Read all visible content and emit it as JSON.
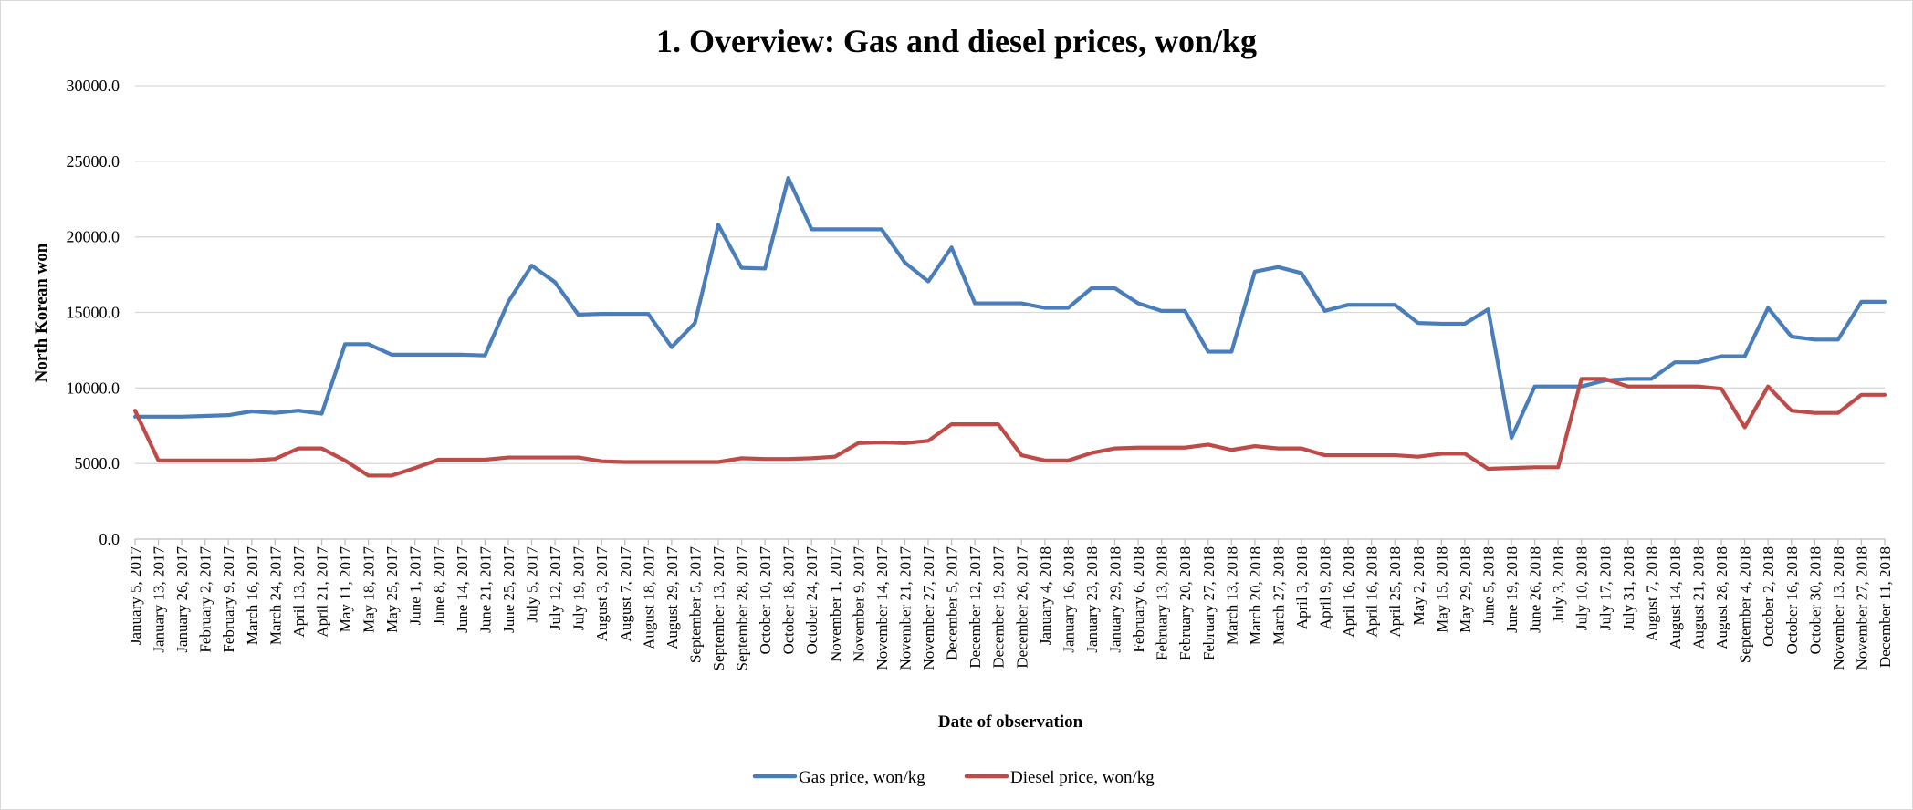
{
  "chart_data": {
    "type": "line",
    "title": "1. Overview: Gas and diesel prices, won/kg",
    "xlabel": "Date of observation",
    "ylabel": "North Korean won",
    "ylim": [
      0,
      30000
    ],
    "yticks": [
      "0.0",
      "5000.0",
      "10000.0",
      "15000.0",
      "20000.0",
      "25000.0",
      "30000.0"
    ],
    "grid": true,
    "legend_position": "bottom",
    "categories": [
      "January 5, 2017",
      "January 13, 2017",
      "January 26, 2017",
      "February 2, 2017",
      "February 9, 2017",
      "March 16, 2017",
      "March 24, 2017",
      "April 13, 2017",
      "April 21, 2017",
      "May 11, 2017",
      "May 18, 2017",
      "May 25, 2017",
      "June 1, 2017",
      "June 8, 2017",
      "June 14, 2017",
      "June 21, 2017",
      "June 25, 2017",
      "July 5, 2017",
      "July 12, 2017",
      "July 19, 2017",
      "August 3, 2017",
      "August 7, 2017",
      "August 18, 2017",
      "August 29, 2017",
      "September 5, 2017",
      "September 13, 2017",
      "September 28, 2017",
      "October 10, 2017",
      "October 18, 2017",
      "October 24, 2017",
      "November 1, 2017",
      "November 9, 2017",
      "November 14, 2017",
      "November 21, 2017",
      "November 27, 2017",
      "December 5, 2017",
      "December 12, 2017",
      "December 19, 2017",
      "December 26, 2017",
      "January 4, 2018",
      "January 16, 2018",
      "January 23, 2018",
      "January 29, 2018",
      "February 6, 2018",
      "February 13, 2018",
      "February 20, 2018",
      "February 27, 2018",
      "March 13, 2018",
      "March 20, 2018",
      "March 27, 2018",
      "April 3, 2018",
      "April 9, 2018",
      "April 16, 2018",
      "April 16, 2018",
      "April 25, 2018",
      "May 2, 2018",
      "May 15, 2018",
      "May 29, 2018",
      "June 5, 2018",
      "June 19, 2018",
      "June 26, 2018",
      "July 3, 2018",
      "July 10, 2018",
      "July 17, 2018",
      "July 31, 2018",
      "August 7, 2018",
      "August 14, 2018",
      "August 21, 2018",
      "August 28, 2018",
      "September 4, 2018",
      "October 2, 2018",
      "October 16, 2018",
      "October 30, 2018",
      "November 13, 2018",
      "November 27, 2018",
      "December 11, 2018"
    ],
    "series": [
      {
        "name": "Gas price, won/kg",
        "color": "#4a7ebb",
        "values": [
          8100,
          8100,
          8100,
          8150,
          8200,
          8450,
          8350,
          8500,
          8300,
          12900,
          12900,
          12200,
          12200,
          12200,
          12200,
          12150,
          15700,
          18100,
          17000,
          14850,
          14900,
          14900,
          14900,
          12700,
          14300,
          20800,
          17950,
          17900,
          23900,
          20500,
          20500,
          20500,
          20500,
          18300,
          17050,
          19300,
          15600,
          15600,
          15600,
          15300,
          15300,
          16600,
          16600,
          15600,
          15100,
          15100,
          12400,
          12400,
          17700,
          18000,
          17600,
          15100,
          15500,
          15500,
          15500,
          14300,
          14250,
          14250,
          15200,
          6700,
          10100,
          10100,
          10100,
          10500,
          10600,
          10600,
          11700,
          11700,
          12100,
          12100,
          15300,
          13400,
          13200,
          13200,
          15700,
          15700
        ]
      },
      {
        "name": "Diesel price, won/kg",
        "color": "#be4b48",
        "values": [
          8500,
          5200,
          5200,
          5200,
          5200,
          5200,
          5300,
          6000,
          6000,
          5200,
          4200,
          4200,
          4700,
          5250,
          5250,
          5250,
          5400,
          5400,
          5400,
          5400,
          5150,
          5100,
          5100,
          5100,
          5100,
          5100,
          5350,
          5300,
          5300,
          5350,
          5450,
          6350,
          6400,
          6350,
          6500,
          7600,
          7600,
          7600,
          5550,
          5200,
          5200,
          5700,
          6000,
          6050,
          6050,
          6050,
          6250,
          5900,
          6150,
          6000,
          6000,
          5550,
          5550,
          5550,
          5550,
          5450,
          5650,
          5650,
          4650,
          4700,
          4750,
          4750,
          10600,
          10600,
          10100,
          10100,
          10100,
          10100,
          9950,
          7400,
          10100,
          8500,
          8350,
          8350,
          9550,
          9550
        ]
      }
    ]
  }
}
